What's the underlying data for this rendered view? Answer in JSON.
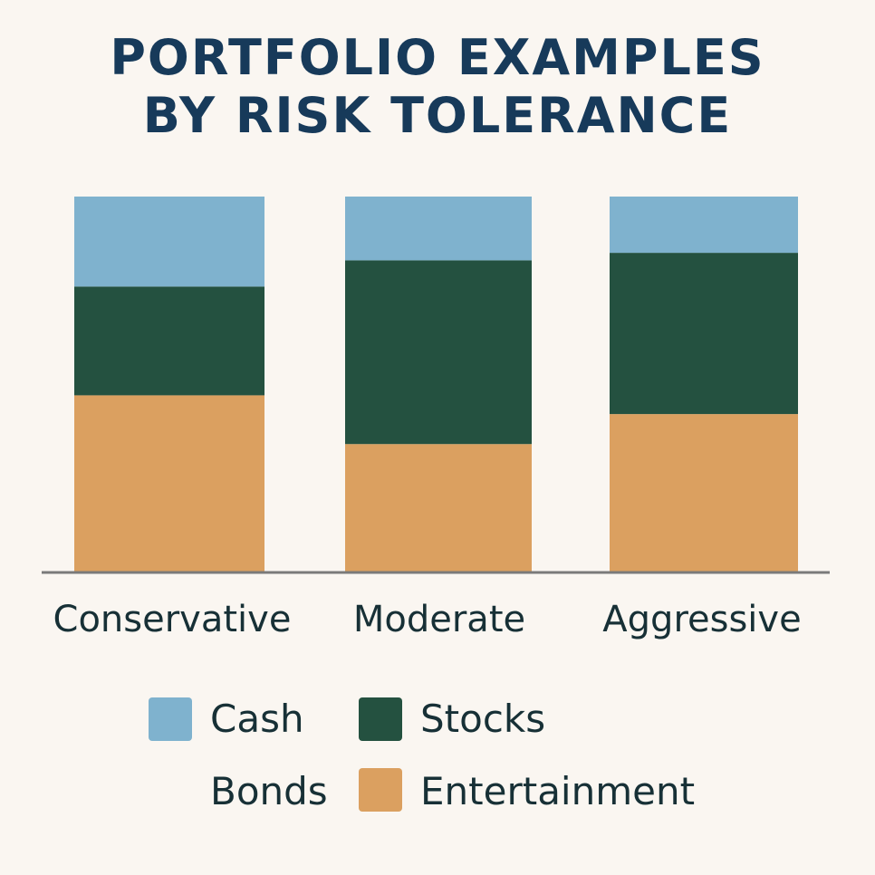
{
  "title_lines": [
    "PORTFOLIO EXAMPLES",
    "BY RISK TOLERANCE"
  ],
  "chart_data": {
    "type": "bar",
    "stacked": true,
    "title": "PORTFOLIO EXAMPLES BY RISK TOLERANCE",
    "xlabel": "",
    "ylabel": "",
    "categories": [
      "Conservative",
      "Moderate",
      "Aggressive"
    ],
    "series": [
      {
        "name": "Entertainment",
        "color": "#dba060",
        "values": [
          47,
          34,
          42
        ]
      },
      {
        "name": "Stocks",
        "color": "#245140",
        "values": [
          29,
          49,
          43
        ]
      },
      {
        "name": "Cash",
        "color": "#7fb2ce",
        "values": [
          24,
          17,
          15
        ]
      }
    ],
    "ylim": [
      0,
      100
    ],
    "grid": false,
    "legend_position": "bottom-center"
  },
  "legend": [
    {
      "label": "Cash",
      "color": "#7fb2ce",
      "has_swatch": true
    },
    {
      "label": "Stocks",
      "color": "#245140",
      "has_swatch": true
    },
    {
      "label": "Bonds",
      "color": "",
      "has_swatch": false
    },
    {
      "label": "Entertainment",
      "color": "#dba060",
      "has_swatch": true
    }
  ]
}
